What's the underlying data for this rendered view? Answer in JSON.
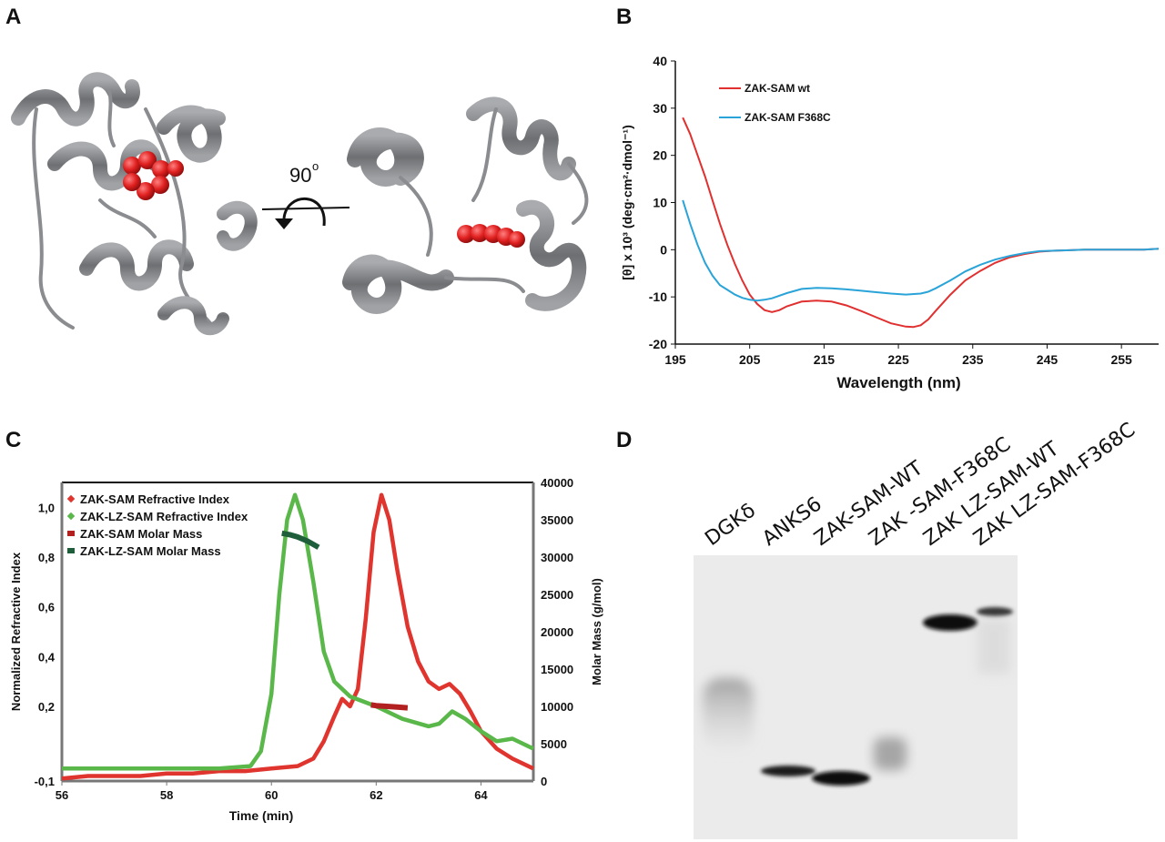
{
  "panels": {
    "a": {
      "letter": "A",
      "rotation_label": "90",
      "rotation_sup": "o"
    },
    "b": {
      "letter": "B"
    },
    "c": {
      "letter": "C"
    },
    "d": {
      "letter": "D",
      "lanes": [
        "DGKδ",
        "ANKS6",
        "ZAK-SAM-WT",
        "ZAK -SAM-F368C",
        "ZAK LZ-SAM-WT",
        "ZAK LZ-SAM-F368C"
      ]
    }
  },
  "colors": {
    "wt": "#e03030",
    "mutant": "#2aa4d8",
    "zak_sam": "#e0342e",
    "zak_lz_sam": "#5ab84a",
    "zak_sam_mass": "#b32020",
    "zak_lz_sam_mass": "#1f5e3a",
    "protein": "#808285",
    "sphere": "#e02020"
  },
  "chart_data": [
    {
      "type": "line",
      "xlabel": "Wavelength (nm)",
      "ylabel": "[θ] x 10³ (deg·cm²·dmol⁻¹)",
      "xlim": [
        195,
        260
      ],
      "ylim": [
        -20,
        40
      ],
      "xticks": [
        "195",
        "205",
        "215",
        "225",
        "235",
        "245",
        "255"
      ],
      "yticks": [
        "-20",
        "-10",
        "0",
        "10",
        "20",
        "30",
        "40"
      ],
      "legend_position": "top-left",
      "series": [
        {
          "name": "ZAK-SAM wt",
          "x": [
            196,
            197,
            198,
            199,
            200,
            201,
            202,
            203,
            204,
            205,
            206,
            207,
            208,
            209,
            210,
            212,
            214,
            216,
            218,
            220,
            222,
            224,
            226,
            227,
            228,
            229,
            230,
            232,
            234,
            236,
            238,
            240,
            242,
            244,
            246,
            248,
            250,
            252,
            254,
            256,
            258,
            260
          ],
          "values": [
            28,
            24.5,
            20,
            15.5,
            10.5,
            5.5,
            1,
            -3,
            -6.5,
            -9.5,
            -11.5,
            -12.8,
            -13.2,
            -12.8,
            -12,
            -11,
            -10.8,
            -11,
            -11.8,
            -13,
            -14.3,
            -15.6,
            -16.3,
            -16.4,
            -16,
            -14.8,
            -13,
            -9.5,
            -6.5,
            -4.5,
            -2.8,
            -1.6,
            -0.9,
            -0.4,
            -0.2,
            -0.1,
            0,
            0,
            0,
            0,
            0,
            0.2
          ]
        },
        {
          "name": "ZAK-SAM F368C",
          "x": [
            196,
            197,
            198,
            199,
            200,
            201,
            202,
            203,
            204,
            205,
            206,
            207,
            208,
            210,
            212,
            214,
            216,
            218,
            220,
            222,
            224,
            226,
            228,
            229,
            230,
            232,
            234,
            236,
            238,
            240,
            242,
            244,
            246,
            248,
            250,
            252,
            254,
            256,
            258,
            260
          ],
          "values": [
            10.5,
            5.5,
            1,
            -2.8,
            -5.5,
            -7.5,
            -8.5,
            -9.5,
            -10.2,
            -10.6,
            -10.8,
            -10.6,
            -10.3,
            -9.2,
            -8.3,
            -8.1,
            -8.2,
            -8.4,
            -8.7,
            -9,
            -9.3,
            -9.5,
            -9.3,
            -8.9,
            -8.2,
            -6.5,
            -4.6,
            -3.2,
            -2.1,
            -1.3,
            -0.7,
            -0.3,
            -0.2,
            -0.1,
            0,
            0,
            0,
            0,
            0,
            0.2
          ]
        }
      ]
    },
    {
      "type": "line",
      "xlabel": "Time (min)",
      "ylabel": "Normalized Refractive Index",
      "y2label": "Molar Mass (g/mol)",
      "xlim": [
        56,
        65
      ],
      "ylim": [
        -0.1,
        1.1
      ],
      "y2lim": [
        0,
        40000
      ],
      "xticks": [
        "56",
        "58",
        "60",
        "62",
        "64"
      ],
      "yticks": [
        "-0,1",
        "0,2",
        "0,4",
        "0,6",
        "0,8",
        "1,0"
      ],
      "y2ticks": [
        "0",
        "5000",
        "10000",
        "15000",
        "20000",
        "25000",
        "30000",
        "35000",
        "40000"
      ],
      "legend_position": "top-left",
      "series": [
        {
          "name": "ZAK-SAM Refractive Index",
          "x": [
            56,
            56.5,
            57,
            57.5,
            58,
            58.5,
            59,
            59.5,
            60,
            60.5,
            60.8,
            61,
            61.2,
            61.35,
            61.5,
            61.65,
            61.8,
            61.95,
            62.1,
            62.25,
            62.4,
            62.6,
            62.8,
            63,
            63.2,
            63.4,
            63.6,
            63.8,
            64,
            64.3,
            64.6,
            65
          ],
          "values": [
            -0.09,
            -0.08,
            -0.08,
            -0.08,
            -0.07,
            -0.07,
            -0.06,
            -0.06,
            -0.05,
            -0.04,
            -0.01,
            0.06,
            0.16,
            0.23,
            0.2,
            0.27,
            0.55,
            0.9,
            1.05,
            0.95,
            0.75,
            0.52,
            0.38,
            0.3,
            0.27,
            0.29,
            0.25,
            0.18,
            0.1,
            0.03,
            -0.01,
            -0.05
          ]
        },
        {
          "name": "ZAK-LZ-SAM Refractive Index",
          "x": [
            56,
            57,
            58,
            59,
            59.6,
            59.8,
            60,
            60.15,
            60.3,
            60.45,
            60.6,
            60.8,
            61,
            61.2,
            61.5,
            62,
            62.5,
            63,
            63.2,
            63.45,
            63.7,
            64,
            64.3,
            64.6,
            65
          ],
          "values": [
            -0.05,
            -0.05,
            -0.05,
            -0.05,
            -0.04,
            0.02,
            0.25,
            0.65,
            0.95,
            1.05,
            0.95,
            0.7,
            0.42,
            0.3,
            0.24,
            0.2,
            0.15,
            0.12,
            0.13,
            0.18,
            0.15,
            0.1,
            0.06,
            0.07,
            0.03
          ]
        },
        {
          "name": "ZAK-SAM Molar Mass",
          "x": [
            61.9,
            62,
            62.2,
            62.4,
            62.6
          ],
          "values": [
            10200,
            10100,
            10000,
            9900,
            9800
          ]
        },
        {
          "name": "ZAK-LZ-SAM Molar Mass",
          "x": [
            60.2,
            60.35,
            60.5,
            60.7,
            60.9
          ],
          "values": [
            33200,
            33000,
            32700,
            32100,
            31300
          ]
        }
      ]
    }
  ]
}
